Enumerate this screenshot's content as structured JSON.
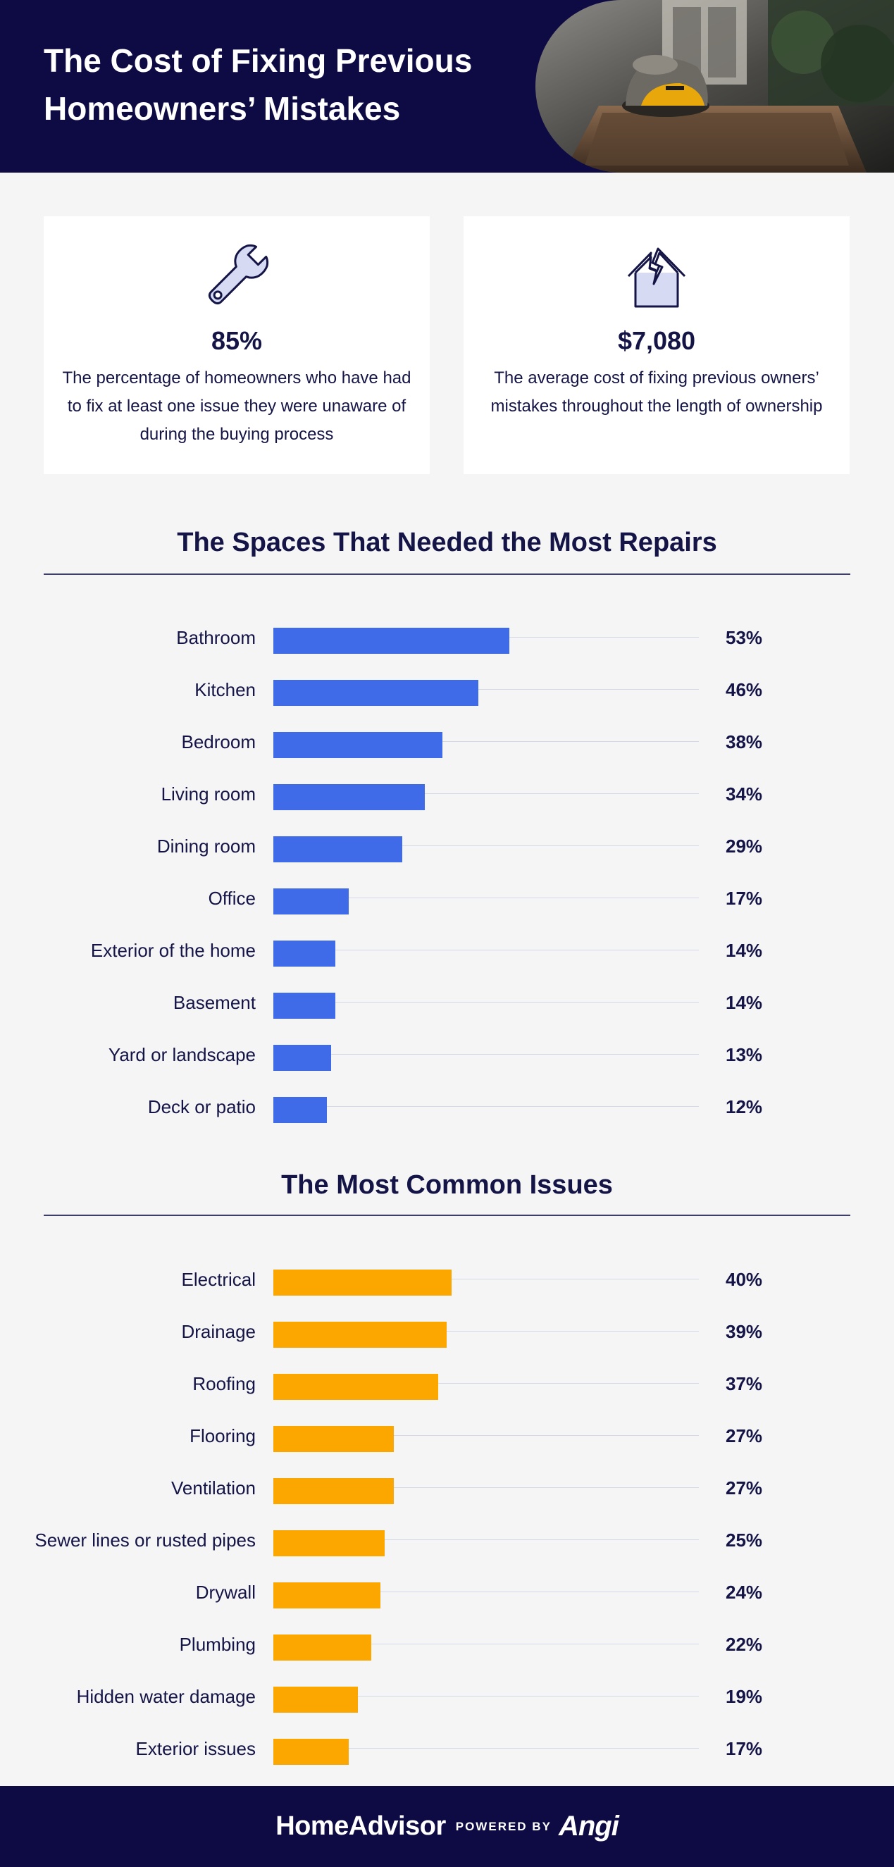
{
  "header": {
    "title_line1": "The Cost of Fixing Previous",
    "title_line2": "Homeowners’ Mistakes",
    "background_color": "#0e0b44"
  },
  "stats": [
    {
      "icon": "wrench-icon",
      "value": "85%",
      "description": "The percentage of homeowners who have had to fix at least one issue they were unaware of during the buying process"
    },
    {
      "icon": "broken-house-icon",
      "value": "$7,080",
      "description": "The average cost of fixing previous owners’ mistakes throughout the length of ownership"
    }
  ],
  "colors": {
    "spaces_bar": "#3f6ae8",
    "issues_bar": "#fba700",
    "text": "#141446",
    "footer": "#0e0b44"
  },
  "chart_data": [
    {
      "type": "bar",
      "orientation": "horizontal",
      "title": "The Spaces That Needed the Most Repairs",
      "categories": [
        "Bathroom",
        "Kitchen",
        "Bedroom",
        "Living room",
        "Dining room",
        "Office",
        "Exterior of the home",
        "Basement",
        "Yard or landscape",
        "Deck or patio"
      ],
      "values": [
        53,
        46,
        38,
        34,
        29,
        17,
        14,
        14,
        13,
        12
      ],
      "value_labels": [
        "53%",
        "46%",
        "38%",
        "34%",
        "29%",
        "17%",
        "14%",
        "14%",
        "13%",
        "12%"
      ],
      "xlim": [
        0,
        100
      ],
      "grid": true,
      "color": "#3f6ae8"
    },
    {
      "type": "bar",
      "orientation": "horizontal",
      "title": "The Most Common Issues",
      "categories": [
        "Electrical",
        "Drainage",
        "Roofing",
        "Flooring",
        "Ventilation",
        "Sewer lines or rusted pipes",
        "Drywall",
        "Plumbing",
        "Hidden water damage",
        "Exterior issues"
      ],
      "values": [
        40,
        39,
        37,
        27,
        27,
        25,
        24,
        22,
        19,
        17
      ],
      "value_labels": [
        "40%",
        "39%",
        "37%",
        "27%",
        "27%",
        "25%",
        "24%",
        "22%",
        "19%",
        "17%"
      ],
      "xlim": [
        0,
        100
      ],
      "grid": true,
      "color": "#fba700"
    }
  ],
  "footer": {
    "brand": "HomeAdvisor",
    "powered_by": "POWERED BY",
    "partner": "Angi"
  }
}
